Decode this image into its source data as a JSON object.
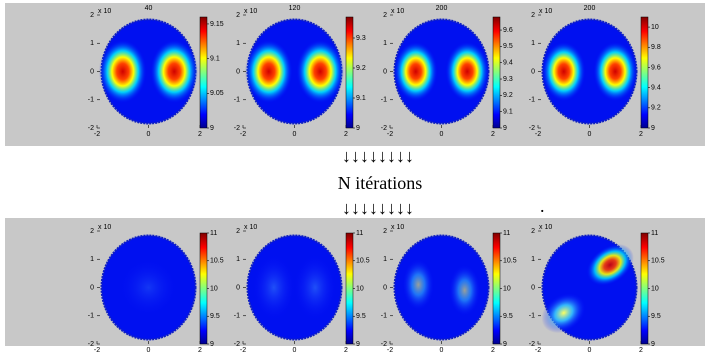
{
  "panels": [
    {
      "title": "40",
      "axis_label": "x 10",
      "xticks": [
        -2,
        0,
        2
      ],
      "yticks": [
        2,
        1,
        0,
        -1,
        -2
      ],
      "clim": [
        9,
        9.16
      ],
      "colorbar_ticks": [
        9.15,
        9.1,
        9.05,
        9
      ]
    },
    {
      "title": "120",
      "axis_label": "x 10",
      "xticks": [
        -2,
        0,
        2
      ],
      "yticks": [
        2,
        1,
        0,
        -1,
        -2
      ],
      "clim": [
        9,
        9.37
      ],
      "colorbar_ticks": [
        9.3,
        9.2,
        9.1,
        9
      ]
    },
    {
      "title": "200",
      "axis_label": "x 10",
      "xticks": [
        -2,
        0,
        2
      ],
      "yticks": [
        2,
        1,
        0,
        -1,
        -2
      ],
      "clim": [
        9,
        9.68
      ],
      "colorbar_ticks": [
        9.6,
        9.5,
        9.4,
        9.3,
        9.2,
        9.1,
        9
      ]
    },
    {
      "title": "200",
      "axis_label": "x 10",
      "xticks": [
        -2,
        0,
        2
      ],
      "yticks": [
        2,
        1,
        0,
        -1,
        -2
      ],
      "clim": [
        9,
        10.1
      ],
      "colorbar_ticks": [
        10,
        9.8,
        9.6,
        9.4,
        9.2,
        9
      ]
    },
    {
      "axis_label": "x 10",
      "xticks": [
        -2,
        0,
        2
      ],
      "yticks": [
        2,
        1,
        0,
        -1,
        -2
      ],
      "clim": [
        9,
        11
      ],
      "colorbar_ticks": [
        11,
        10.5,
        10,
        9.5,
        9
      ]
    },
    {
      "axis_label": "x 10",
      "xticks": [
        -2,
        0,
        2
      ],
      "yticks": [
        2,
        1,
        0,
        -1,
        -2
      ],
      "clim": [
        9,
        11
      ],
      "colorbar_ticks": [
        11,
        10.5,
        10,
        9.5,
        9
      ]
    },
    {
      "axis_label": "x 10",
      "xticks": [
        -2,
        0,
        2
      ],
      "yticks": [
        2,
        1,
        0,
        -1,
        -2
      ],
      "clim": [
        9,
        11
      ],
      "colorbar_ticks": [
        11,
        10.5,
        10,
        9.5,
        9
      ]
    },
    {
      "axis_label": "x 10",
      "xticks": [
        -2,
        0,
        2
      ],
      "yticks": [
        2,
        1,
        0,
        -1,
        -2
      ],
      "clim": [
        9,
        11
      ],
      "colorbar_ticks": [
        11,
        10.5,
        10,
        9.5,
        9
      ]
    }
  ],
  "middle": {
    "arrows_top": "↓↓↓↓↓↓↓↓",
    "caption": "N itérations",
    "arrows_bottom": "↓↓↓↓↓↓↓↓",
    "dot": "."
  }
}
